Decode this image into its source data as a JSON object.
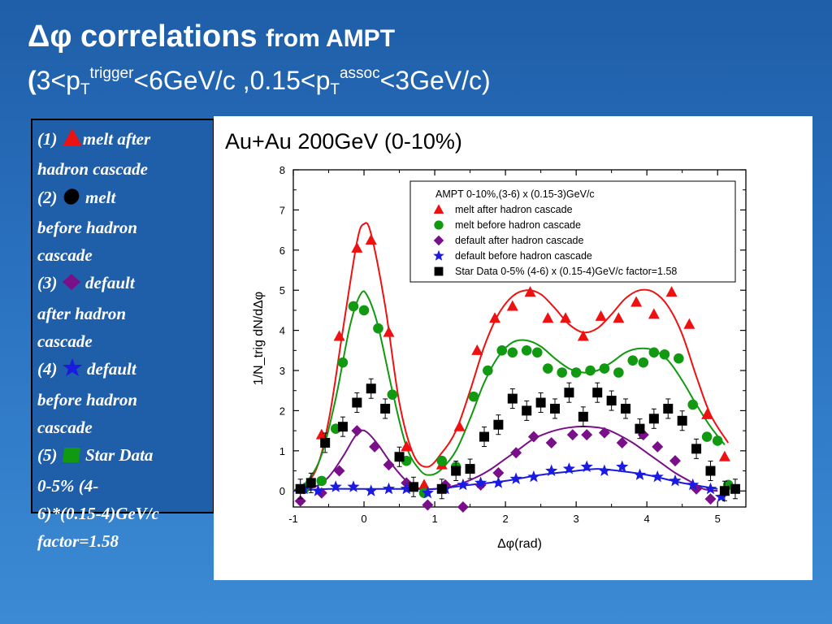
{
  "slide": {
    "title_main": "Δφ correlations",
    "title_small": "from AMPT",
    "subtitle": {
      "open": "(",
      "part1": "3<p",
      "sub1": "T",
      "sup1": "trigger",
      "part2": "<6GeV/c ,0.15<p",
      "sub2": "T",
      "sup2": "assoc",
      "part3": "<3GeV/c)"
    }
  },
  "sidebox": {
    "lines": [
      {
        "prefix": "(1) ",
        "icon": "red-triangle-icon",
        "text": "melt after"
      },
      {
        "text": "hadron cascade"
      },
      {
        "prefix": "(2) ",
        "icon": "black-ellipse-icon",
        "text": " melt"
      },
      {
        "text": "before hadron"
      },
      {
        "text": "cascade"
      },
      {
        "prefix": "(3) ",
        "icon": "purple-diamond-icon",
        "text": " default"
      },
      {
        "text": "after hadron"
      },
      {
        "text": "cascade"
      },
      {
        "prefix": "(4) ",
        "icon": "blue-star-icon",
        "text": " default"
      },
      {
        "text": "before hadron"
      },
      {
        "text": "cascade"
      },
      {
        "prefix": "(5) ",
        "icon": "green-square-icon",
        "text": " Star Data"
      },
      {
        "text": "0-5% (4-"
      },
      {
        "text": "6)*(0.15-4)GeV/c"
      },
      {
        "text": "factor=1.58"
      }
    ]
  },
  "colors": {
    "red": "#ee1111",
    "green": "#119911",
    "purple": "#7a0f8a",
    "blue": "#1a1ae0",
    "black": "#000000"
  },
  "chart_data": {
    "type": "scatter",
    "title": "Au+Au 200GeV (0-10%)",
    "xlabel": "Δφ(rad)",
    "ylabel": "1/N_trig dN/dΔφ",
    "xlim": [
      -1,
      5.4
    ],
    "ylim": [
      -0.4,
      8
    ],
    "xticks": [
      -1,
      0,
      1,
      2,
      3,
      4,
      5
    ],
    "yticks": [
      0,
      1,
      2,
      3,
      4,
      5,
      6,
      7,
      8
    ],
    "legend": {
      "title": "AMPT 0-10%,(3-6) x (0.15-3)GeV/c",
      "position": "top-right"
    },
    "series": [
      {
        "name": "melt after hadron cascade",
        "marker": "triangle",
        "color": "#ee1111",
        "points": [
          [
            -0.6,
            1.4
          ],
          [
            -0.35,
            3.85
          ],
          [
            -0.1,
            6.05
          ],
          [
            0.1,
            6.25
          ],
          [
            0.35,
            3.95
          ],
          [
            0.6,
            1.1
          ],
          [
            0.85,
            0.15
          ],
          [
            1.1,
            0.65
          ],
          [
            1.35,
            1.6
          ],
          [
            1.6,
            3.5
          ],
          [
            1.85,
            4.3
          ],
          [
            2.1,
            4.6
          ],
          [
            2.35,
            4.95
          ],
          [
            2.6,
            4.3
          ],
          [
            2.85,
            4.3
          ],
          [
            3.1,
            3.85
          ],
          [
            3.35,
            4.35
          ],
          [
            3.6,
            4.3
          ],
          [
            3.85,
            4.7
          ],
          [
            4.1,
            4.4
          ],
          [
            4.35,
            4.95
          ],
          [
            4.6,
            4.15
          ],
          [
            4.85,
            1.9
          ],
          [
            5.1,
            0.85
          ]
        ],
        "curve": [
          [
            -1,
            0.0
          ],
          [
            -0.7,
            0.45
          ],
          [
            -0.5,
            1.75
          ],
          [
            -0.3,
            4.0
          ],
          [
            -0.1,
            6.2
          ],
          [
            0.0,
            6.65
          ],
          [
            0.1,
            6.4
          ],
          [
            0.3,
            4.6
          ],
          [
            0.5,
            2.2
          ],
          [
            0.7,
            0.9
          ],
          [
            0.9,
            0.6
          ],
          [
            1.1,
            0.95
          ],
          [
            1.3,
            1.5
          ],
          [
            1.5,
            2.5
          ],
          [
            1.7,
            3.6
          ],
          [
            1.9,
            4.4
          ],
          [
            2.1,
            4.85
          ],
          [
            2.3,
            5.0
          ],
          [
            2.5,
            4.9
          ],
          [
            2.7,
            4.55
          ],
          [
            2.9,
            4.15
          ],
          [
            3.1,
            3.95
          ],
          [
            3.3,
            4.05
          ],
          [
            3.5,
            4.4
          ],
          [
            3.7,
            4.8
          ],
          [
            3.9,
            5.0
          ],
          [
            4.1,
            4.95
          ],
          [
            4.3,
            4.6
          ],
          [
            4.5,
            3.9
          ],
          [
            4.7,
            2.85
          ],
          [
            4.9,
            1.9
          ],
          [
            5.15,
            1.2
          ]
        ]
      },
      {
        "name": "melt before hadron cascade",
        "marker": "circle",
        "color": "#119911",
        "points": [
          [
            -0.85,
            0.05
          ],
          [
            -0.6,
            0.25
          ],
          [
            -0.4,
            1.55
          ],
          [
            -0.3,
            3.2
          ],
          [
            -0.15,
            4.6
          ],
          [
            0.0,
            4.5
          ],
          [
            0.2,
            4.05
          ],
          [
            0.4,
            2.4
          ],
          [
            0.6,
            0.75
          ],
          [
            0.85,
            -0.05
          ],
          [
            1.1,
            0.75
          ],
          [
            1.3,
            0.6
          ],
          [
            1.55,
            2.35
          ],
          [
            1.75,
            3.0
          ],
          [
            1.95,
            3.5
          ],
          [
            2.1,
            3.45
          ],
          [
            2.3,
            3.5
          ],
          [
            2.45,
            3.45
          ],
          [
            2.6,
            3.05
          ],
          [
            2.8,
            2.95
          ],
          [
            3.0,
            2.95
          ],
          [
            3.2,
            3.0
          ],
          [
            3.4,
            3.05
          ],
          [
            3.6,
            2.95
          ],
          [
            3.8,
            3.25
          ],
          [
            3.95,
            3.2
          ],
          [
            4.1,
            3.45
          ],
          [
            4.25,
            3.4
          ],
          [
            4.45,
            3.3
          ],
          [
            4.65,
            2.15
          ],
          [
            4.85,
            1.35
          ],
          [
            5.0,
            1.25
          ],
          [
            5.15,
            0.15
          ]
        ],
        "curve": [
          [
            -1,
            0.0
          ],
          [
            -0.8,
            0.25
          ],
          [
            -0.6,
            0.9
          ],
          [
            -0.4,
            2.3
          ],
          [
            -0.2,
            4.1
          ],
          [
            -0.05,
            4.9
          ],
          [
            0.05,
            4.85
          ],
          [
            0.2,
            4.1
          ],
          [
            0.4,
            2.5
          ],
          [
            0.6,
            1.1
          ],
          [
            0.8,
            0.5
          ],
          [
            0.95,
            0.4
          ],
          [
            1.1,
            0.55
          ],
          [
            1.3,
            1.0
          ],
          [
            1.5,
            1.8
          ],
          [
            1.7,
            2.7
          ],
          [
            1.9,
            3.35
          ],
          [
            2.1,
            3.7
          ],
          [
            2.3,
            3.75
          ],
          [
            2.5,
            3.6
          ],
          [
            2.7,
            3.3
          ],
          [
            2.9,
            3.05
          ],
          [
            3.1,
            2.95
          ],
          [
            3.3,
            3.0
          ],
          [
            3.5,
            3.2
          ],
          [
            3.7,
            3.45
          ],
          [
            3.9,
            3.55
          ],
          [
            4.1,
            3.5
          ],
          [
            4.3,
            3.25
          ],
          [
            4.5,
            2.75
          ],
          [
            4.7,
            2.15
          ],
          [
            4.9,
            1.6
          ],
          [
            5.1,
            1.15
          ]
        ]
      },
      {
        "name": "default after hadron cascade",
        "marker": "diamond",
        "color": "#7a0f8a",
        "points": [
          [
            -0.9,
            -0.25
          ],
          [
            -0.6,
            -0.05
          ],
          [
            -0.35,
            0.5
          ],
          [
            -0.1,
            1.5
          ],
          [
            0.15,
            1.1
          ],
          [
            0.35,
            0.65
          ],
          [
            0.6,
            0.2
          ],
          [
            0.9,
            -0.35
          ],
          [
            1.15,
            0.15
          ],
          [
            1.4,
            -0.4
          ],
          [
            1.65,
            0.15
          ],
          [
            1.9,
            0.45
          ],
          [
            2.15,
            0.95
          ],
          [
            2.4,
            1.35
          ],
          [
            2.65,
            1.2
          ],
          [
            2.95,
            1.4
          ],
          [
            3.15,
            1.4
          ],
          [
            3.4,
            1.45
          ],
          [
            3.65,
            1.2
          ],
          [
            3.95,
            1.4
          ],
          [
            4.15,
            1.1
          ],
          [
            4.4,
            0.75
          ],
          [
            4.7,
            0.05
          ],
          [
            4.9,
            -0.2
          ]
        ],
        "curve": [
          [
            -1,
            0.0
          ],
          [
            -0.7,
            0.1
          ],
          [
            -0.5,
            0.35
          ],
          [
            -0.3,
            0.85
          ],
          [
            -0.15,
            1.3
          ],
          [
            -0.05,
            1.5
          ],
          [
            0.05,
            1.45
          ],
          [
            0.2,
            1.15
          ],
          [
            0.4,
            0.65
          ],
          [
            0.6,
            0.25
          ],
          [
            0.8,
            0.05
          ],
          [
            1.0,
            0.05
          ],
          [
            1.2,
            0.1
          ],
          [
            1.4,
            0.2
          ],
          [
            1.6,
            0.35
          ],
          [
            1.8,
            0.55
          ],
          [
            2.0,
            0.8
          ],
          [
            2.2,
            1.05
          ],
          [
            2.4,
            1.3
          ],
          [
            2.6,
            1.45
          ],
          [
            2.8,
            1.55
          ],
          [
            3.0,
            1.6
          ],
          [
            3.2,
            1.6
          ],
          [
            3.4,
            1.55
          ],
          [
            3.6,
            1.4
          ],
          [
            3.8,
            1.2
          ],
          [
            4.0,
            0.95
          ],
          [
            4.2,
            0.7
          ],
          [
            4.4,
            0.45
          ],
          [
            4.6,
            0.25
          ],
          [
            4.8,
            0.05
          ],
          [
            5.0,
            0.0
          ]
        ]
      },
      {
        "name": "default before hadron cascade",
        "marker": "star",
        "color": "#1a1ae0",
        "points": [
          [
            -0.85,
            0.05
          ],
          [
            -0.65,
            0.0
          ],
          [
            -0.4,
            0.1
          ],
          [
            -0.15,
            0.1
          ],
          [
            0.1,
            0.0
          ],
          [
            0.35,
            0.05
          ],
          [
            0.6,
            0.05
          ],
          [
            0.9,
            -0.05
          ],
          [
            1.15,
            0.05
          ],
          [
            1.4,
            0.15
          ],
          [
            1.65,
            0.2
          ],
          [
            1.9,
            0.2
          ],
          [
            2.15,
            0.3
          ],
          [
            2.4,
            0.35
          ],
          [
            2.65,
            0.5
          ],
          [
            2.9,
            0.55
          ],
          [
            3.15,
            0.6
          ],
          [
            3.4,
            0.5
          ],
          [
            3.65,
            0.6
          ],
          [
            3.9,
            0.4
          ],
          [
            4.15,
            0.35
          ],
          [
            4.4,
            0.25
          ],
          [
            4.65,
            0.15
          ],
          [
            4.9,
            0.05
          ],
          [
            5.05,
            -0.15
          ]
        ],
        "curve": [
          [
            -1,
            0.0
          ],
          [
            -0.5,
            0.05
          ],
          [
            0.0,
            0.05
          ],
          [
            0.5,
            0.05
          ],
          [
            1.0,
            0.05
          ],
          [
            1.5,
            0.15
          ],
          [
            2.0,
            0.25
          ],
          [
            2.5,
            0.4
          ],
          [
            3.0,
            0.5
          ],
          [
            3.3,
            0.55
          ],
          [
            3.6,
            0.5
          ],
          [
            4.0,
            0.4
          ],
          [
            4.5,
            0.2
          ],
          [
            5.0,
            0.05
          ]
        ]
      },
      {
        "name": "Star Data 0-5% (4-6) x (0.15-4)GeV/c factor=1.58",
        "marker": "square",
        "color": "#000000",
        "points": [
          [
            -0.9,
            0.05
          ],
          [
            -0.75,
            0.2
          ],
          [
            -0.55,
            1.2
          ],
          [
            -0.3,
            1.6
          ],
          [
            -0.1,
            2.2
          ],
          [
            0.1,
            2.55
          ],
          [
            0.3,
            2.05
          ],
          [
            0.5,
            0.85
          ],
          [
            0.7,
            0.1
          ],
          [
            1.1,
            0.05
          ],
          [
            1.3,
            0.5
          ],
          [
            1.5,
            0.55
          ],
          [
            1.7,
            1.35
          ],
          [
            1.9,
            1.65
          ],
          [
            2.1,
            2.3
          ],
          [
            2.3,
            2.0
          ],
          [
            2.5,
            2.2
          ],
          [
            2.7,
            2.05
          ],
          [
            2.9,
            2.45
          ],
          [
            3.1,
            1.85
          ],
          [
            3.3,
            2.45
          ],
          [
            3.5,
            2.25
          ],
          [
            3.7,
            2.05
          ],
          [
            3.9,
            1.55
          ],
          [
            4.1,
            1.8
          ],
          [
            4.3,
            2.05
          ],
          [
            4.5,
            1.75
          ],
          [
            4.7,
            1.05
          ],
          [
            4.9,
            0.5
          ],
          [
            5.1,
            0.0
          ],
          [
            5.25,
            0.05
          ]
        ]
      }
    ]
  }
}
